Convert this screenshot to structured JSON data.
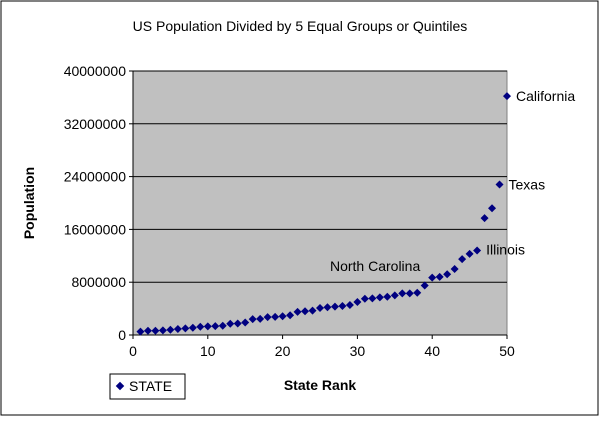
{
  "chart_data": {
    "type": "scatter",
    "title": "US Population Divided by 5 Equal Groups or Quintiles",
    "xlabel": "State Rank",
    "ylabel": "Population",
    "xlim": [
      0,
      50
    ],
    "ylim": [
      0,
      40000000
    ],
    "x_ticks": [
      "0",
      "10",
      "20",
      "30",
      "40",
      "50"
    ],
    "y_ticks": [
      "0",
      "8000000",
      "16000000",
      "24000000",
      "32000000",
      "40000000"
    ],
    "grid": "horizontal",
    "legend_position": "bottom-left",
    "plot_background": "#c0c0c0",
    "marker_color": "#000080",
    "series": [
      {
        "name": "STATE",
        "x": [
          1,
          2,
          3,
          4,
          5,
          6,
          7,
          8,
          9,
          10,
          11,
          12,
          13,
          14,
          15,
          16,
          17,
          18,
          19,
          20,
          21,
          22,
          23,
          24,
          25,
          26,
          27,
          28,
          29,
          30,
          31,
          32,
          33,
          34,
          35,
          36,
          37,
          38,
          39,
          40,
          41,
          42,
          43,
          44,
          45,
          46,
          47,
          48,
          49,
          50
        ],
        "y": [
          520000,
          640000,
          650000,
          700000,
          800000,
          900000,
          1000000,
          1100000,
          1250000,
          1300000,
          1350000,
          1400000,
          1700000,
          1750000,
          1900000,
          2400000,
          2450000,
          2700000,
          2750000,
          2850000,
          3000000,
          3500000,
          3600000,
          3700000,
          4100000,
          4200000,
          4300000,
          4400000,
          4550000,
          5000000,
          5500000,
          5550000,
          5700000,
          5800000,
          6000000,
          6300000,
          6300000,
          6400000,
          7500000,
          8700000,
          8800000,
          9200000,
          10000000,
          11500000,
          12300000,
          12800000,
          17700000,
          19200000,
          22800000,
          36200000
        ]
      }
    ],
    "annotations": [
      {
        "text": "California",
        "x": 50,
        "y": 36200000
      },
      {
        "text": "Texas",
        "x": 49,
        "y": 22800000
      },
      {
        "text": "Illinois",
        "x": 46,
        "y": 12800000
      },
      {
        "text": "North Carolina",
        "x": 38,
        "y": 10600000
      }
    ]
  }
}
